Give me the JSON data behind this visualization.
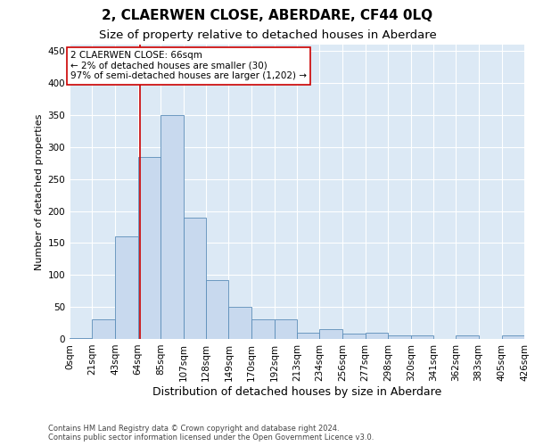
{
  "title": "2, CLAERWEN CLOSE, ABERDARE, CF44 0LQ",
  "subtitle": "Size of property relative to detached houses in Aberdare",
  "xlabel": "Distribution of detached houses by size in Aberdare",
  "ylabel": "Number of detached properties",
  "footer_line1": "Contains HM Land Registry data © Crown copyright and database right 2024.",
  "footer_line2": "Contains public sector information licensed under the Open Government Licence v3.0.",
  "bin_edges": [
    0,
    21,
    43,
    64,
    85,
    107,
    128,
    149,
    170,
    192,
    213,
    234,
    256,
    277,
    298,
    320,
    341,
    362,
    383,
    405,
    426
  ],
  "bar_heights": [
    2,
    30,
    160,
    285,
    350,
    190,
    92,
    50,
    30,
    30,
    10,
    15,
    8,
    10,
    5,
    5,
    0,
    5,
    0,
    5
  ],
  "bar_facecolor": "#c8d9ee",
  "bar_edgecolor": "#5b8db8",
  "grid_color": "#ffffff",
  "bg_color": "#dce9f5",
  "fig_bg_color": "#ffffff",
  "property_label": "2 CLAERWEN CLOSE: 66sqm",
  "annotation_line1": "← 2% of detached houses are smaller (30)",
  "annotation_line2": "97% of semi-detached houses are larger (1,202) →",
  "vline_color": "#cc0000",
  "vline_x": 66,
  "ylim": [
    0,
    460
  ],
  "yticks": [
    0,
    50,
    100,
    150,
    200,
    250,
    300,
    350,
    400,
    450
  ],
  "title_fontsize": 11,
  "subtitle_fontsize": 9.5,
  "xlabel_fontsize": 9,
  "ylabel_fontsize": 8,
  "tick_fontsize": 7.5,
  "footer_fontsize": 6,
  "annotation_fontsize": 7.5,
  "annotation_box_color": "#ffffff",
  "annotation_box_edgecolor": "#cc0000"
}
